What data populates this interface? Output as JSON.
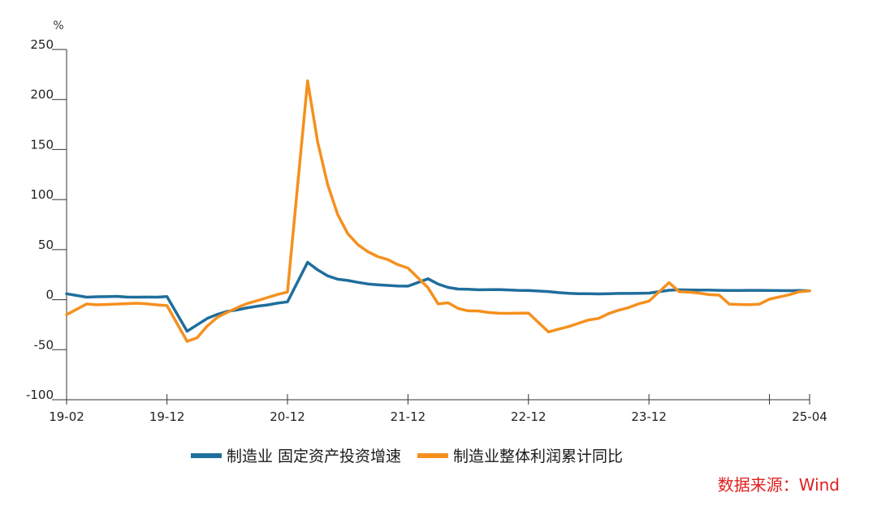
{
  "chart_data": {
    "type": "line",
    "unit_label": "%",
    "ylim": [
      -100,
      250
    ],
    "yticks": [
      250,
      200,
      150,
      100,
      50,
      0,
      -50,
      -100
    ],
    "x_start": "19-02",
    "x_end": "25-04",
    "xticks": [
      "19-02",
      "19-12",
      "20-12",
      "21-12",
      "22-12",
      "23-12",
      "25-04"
    ],
    "extra_xtick_marks": [
      "24-12"
    ],
    "x": [
      "19-02",
      "19-04",
      "19-05",
      "19-06",
      "19-07",
      "19-08",
      "19-09",
      "19-10",
      "19-11",
      "19-12",
      "20-02",
      "20-03",
      "20-04",
      "20-05",
      "20-06",
      "20-07",
      "20-08",
      "20-09",
      "20-10",
      "20-11",
      "20-12",
      "21-02",
      "21-03",
      "21-04",
      "21-05",
      "21-06",
      "21-07",
      "21-08",
      "21-09",
      "21-10",
      "21-11",
      "21-12",
      "22-02",
      "22-03",
      "22-04",
      "22-05",
      "22-06",
      "22-07",
      "22-08",
      "22-09",
      "22-10",
      "22-11",
      "22-12",
      "23-02",
      "23-03",
      "23-04",
      "23-05",
      "23-06",
      "23-07",
      "23-08",
      "23-09",
      "23-10",
      "23-11",
      "23-12",
      "24-02",
      "24-03",
      "24-04",
      "24-05",
      "24-06",
      "24-07",
      "24-08",
      "24-09",
      "24-10",
      "24-11",
      "24-12",
      "25-02",
      "25-03",
      "25-04"
    ],
    "series": [
      {
        "name": "制造业 固定资产投资增速",
        "color": "#1f6e9c",
        "values": [
          5.9,
          2.5,
          2.9,
          3.0,
          3.3,
          2.6,
          2.5,
          2.6,
          2.5,
          3.1,
          -31.5,
          -25.2,
          -18.8,
          -14.8,
          -11.7,
          -10.2,
          -8.1,
          -6.5,
          -5.3,
          -3.5,
          -2.2,
          37.3,
          29.8,
          23.8,
          20.4,
          19.2,
          17.3,
          15.7,
          14.8,
          14.2,
          13.7,
          13.5,
          20.9,
          15.6,
          12.2,
          10.6,
          10.4,
          9.9,
          10.0,
          10.1,
          9.7,
          9.3,
          9.1,
          8.1,
          7.0,
          6.4,
          6.0,
          6.0,
          5.7,
          5.9,
          6.2,
          6.2,
          6.3,
          6.5,
          9.4,
          9.9,
          9.7,
          9.6,
          9.5,
          9.3,
          9.1,
          9.2,
          9.3,
          9.3,
          9.2,
          9.0,
          9.1,
          8.8
        ]
      },
      {
        "name": "制造业整体利润累计同比",
        "color": "#f5901e",
        "values": [
          -15.0,
          -4.3,
          -5.1,
          -4.8,
          -4.4,
          -4.0,
          -3.6,
          -4.2,
          -5.2,
          -5.9,
          -41.7,
          -38.1,
          -26.4,
          -17.7,
          -12.7,
          -8.0,
          -3.8,
          -1.0,
          2.1,
          5.2,
          7.6,
          218.6,
          158.0,
          115.0,
          85.0,
          66.0,
          55.0,
          48.0,
          43.0,
          40.0,
          35.0,
          31.6,
          12.0,
          -4.2,
          -3.2,
          -8.8,
          -11.2,
          -11.3,
          -12.8,
          -13.5,
          -13.7,
          -13.5,
          -13.4,
          -32.3,
          -29.4,
          -26.9,
          -23.5,
          -20.3,
          -18.7,
          -13.9,
          -10.5,
          -7.9,
          -4.1,
          -1.5,
          17.0,
          8.0,
          7.5,
          6.5,
          5.0,
          4.5,
          -4.5,
          -4.8,
          -5.0,
          -4.5,
          0.5,
          5.0,
          8.0,
          8.8
        ]
      }
    ],
    "legend_position": "bottom",
    "grid": false
  },
  "legend": {
    "items": [
      "制造业 固定资产投资增速",
      "制造业整体利润累计同比"
    ]
  },
  "source": "数据来源：Wind"
}
